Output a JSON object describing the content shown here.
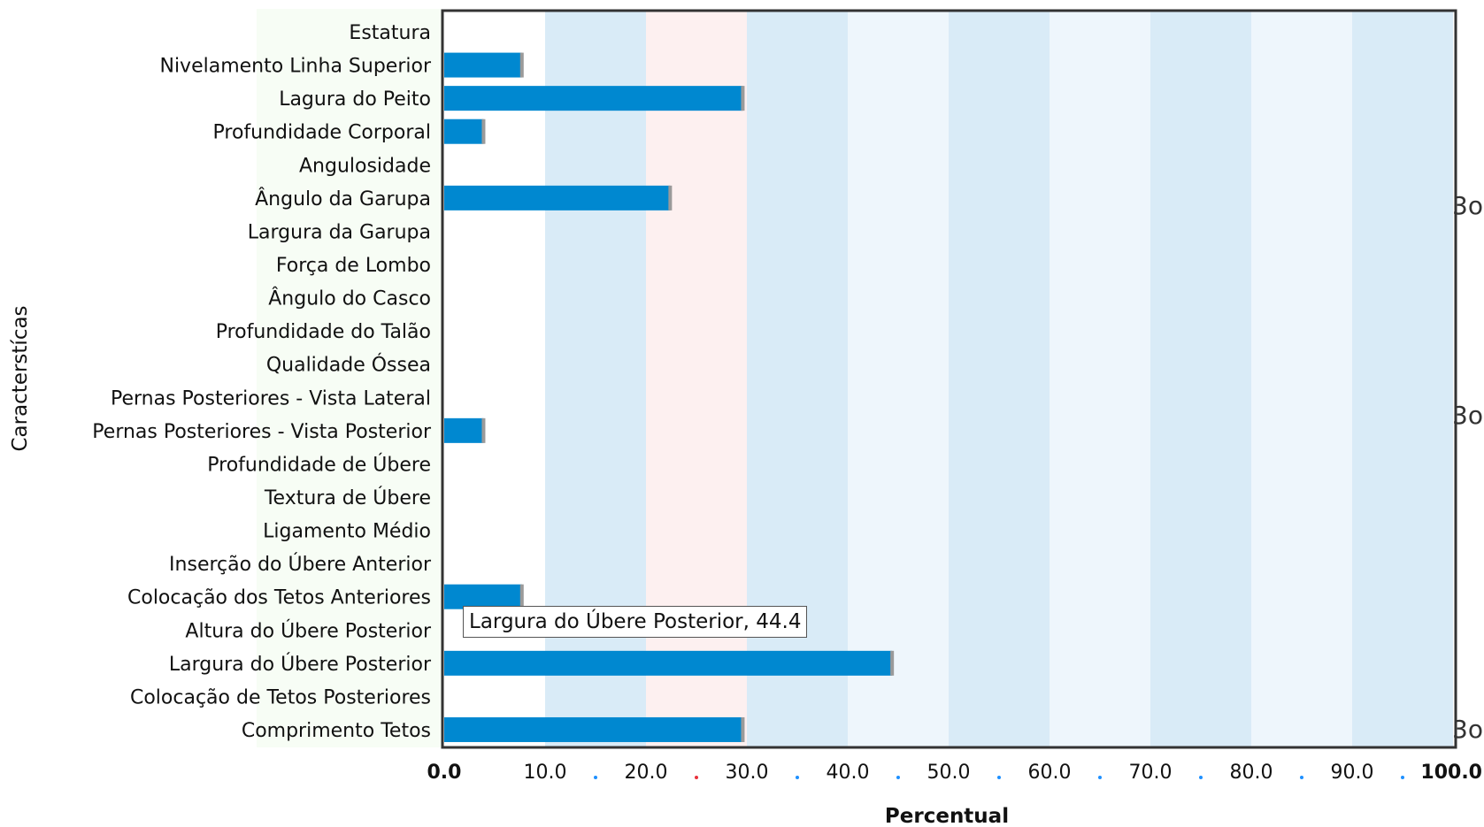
{
  "chart_data": {
    "type": "bar",
    "orientation": "horizontal",
    "categories": [
      "Estatura",
      "Nivelamento Linha Superior",
      "Lagura do Peito",
      "Profundidade Corporal",
      "Angulosidade",
      "Ângulo da Garupa",
      "Largura da Garupa",
      "Força de Lombo",
      "Ângulo do Casco",
      "Profundidade do Talão",
      "Qualidade Óssea",
      "Pernas Posteriores - Vista Lateral",
      "Pernas Posteriores - Vista Posterior",
      "Profundidade de Úbere",
      "Textura de Úbere",
      "Ligamento Médio",
      "Inserção do Úbere Anterior",
      "Colocação dos Tetos Anteriores",
      "Altura do Úbere Posterior",
      "Largura do Úbere Posterior",
      "Colocação de Tetos Posteriores",
      "Comprimento Tetos"
    ],
    "values": [
      0,
      7.7,
      29.6,
      3.9,
      0,
      22.4,
      0,
      0,
      0,
      0,
      0,
      0,
      3.9,
      0,
      0,
      0,
      0,
      7.7,
      0,
      44.4,
      0,
      29.6
    ],
    "xlim": [
      0,
      100
    ],
    "xticks": [
      "0.0",
      "10.0",
      "20.0",
      "30.0",
      "40.0",
      "50.0",
      "60.0",
      "70.0",
      "80.0",
      "90.0",
      "100.0"
    ],
    "xlabel": "Percentual",
    "ylabel": "Caracterstícas",
    "bar_color": "#0088d0",
    "band_colors": [
      "#ffffff",
      "#d9ebf7",
      "#fdf0f0",
      "#d9ebf7",
      "#eef6fc",
      "#d9ebf7",
      "#eef6fc",
      "#d9ebf7",
      "#eef6fc",
      "#d9ebf7"
    ],
    "tick_dot_colors": [
      "#1e90ff",
      "#e8323c",
      "#1e90ff",
      "#1e90ff",
      "#1e90ff",
      "#1e90ff",
      "#1e90ff",
      "#1e90ff",
      "#1e90ff"
    ],
    "grid": false
  },
  "tooltip": {
    "text": "Largura do Úbere Posterior, 44.4"
  },
  "side_marks": [
    "3o",
    "3o",
    "3o"
  ]
}
